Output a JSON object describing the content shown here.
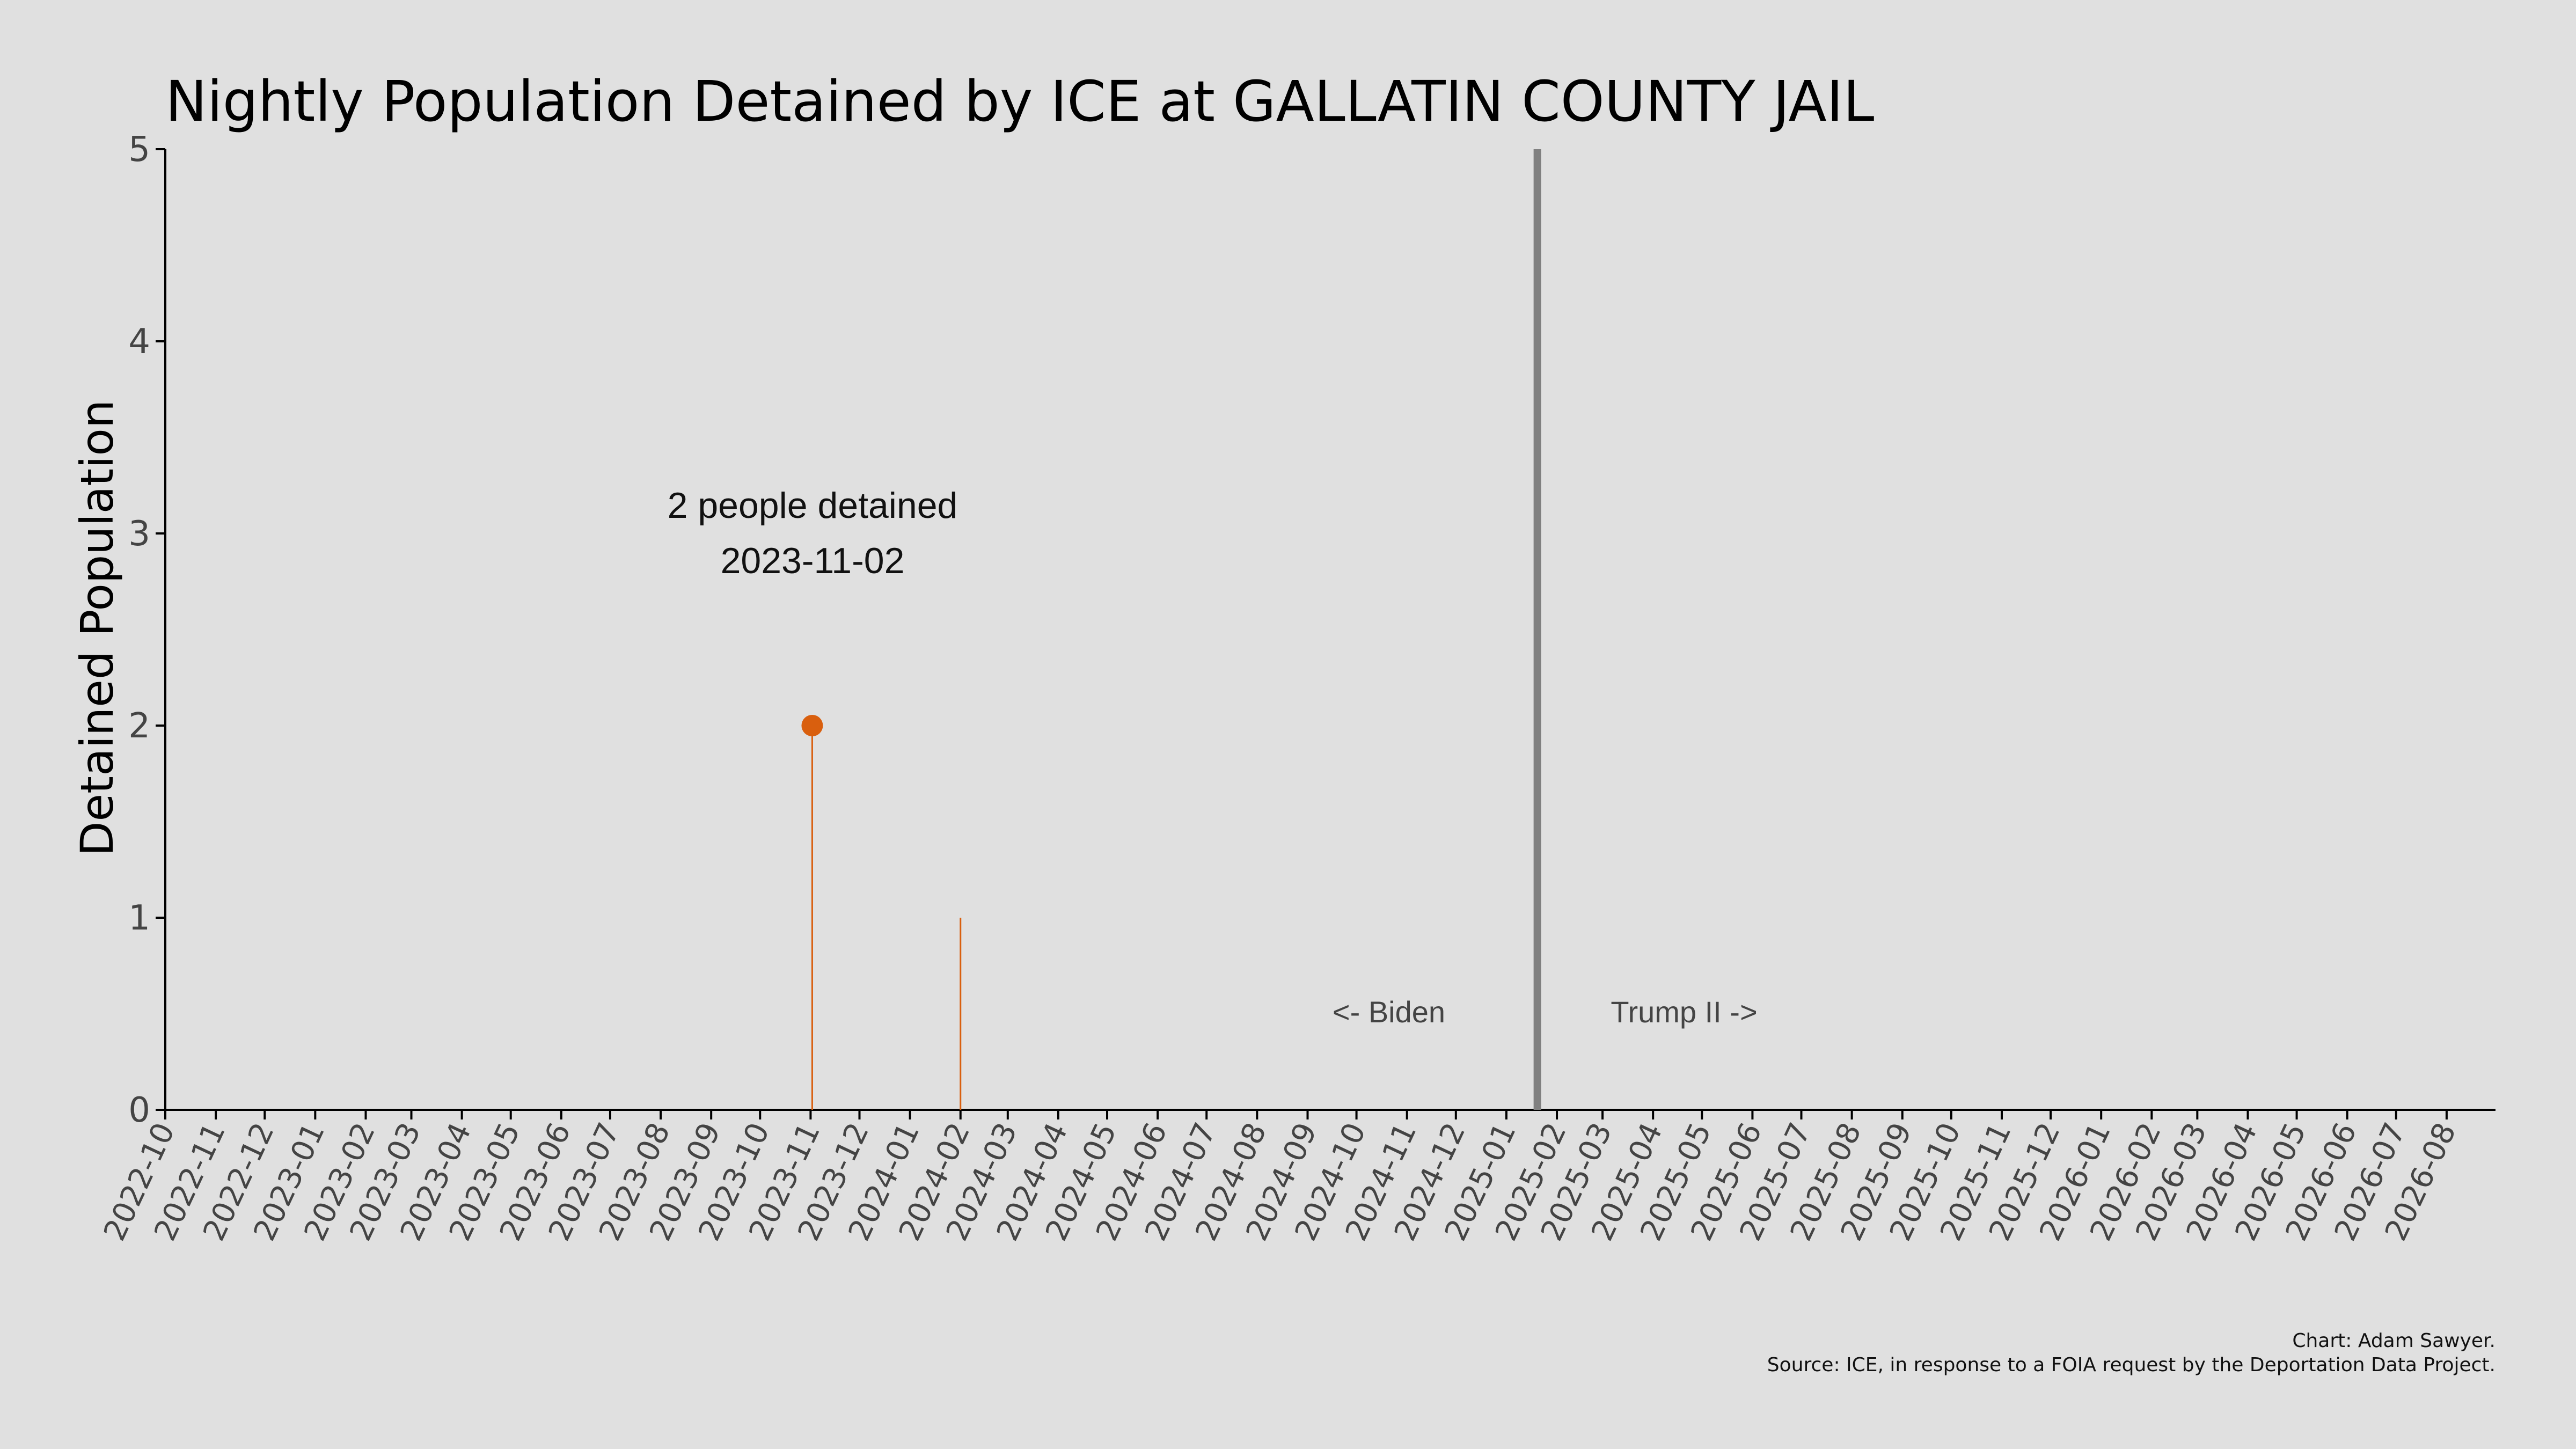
{
  "chart_data": {
    "type": "line",
    "title": "Nightly Population Detained by ICE at GALLATIN COUNTY JAIL",
    "xlabel": "",
    "ylabel": "Detained Population",
    "ylim": [
      0,
      5
    ],
    "yticks": [
      0,
      1,
      2,
      3,
      4,
      5
    ],
    "xlim": [
      "2022-10-01",
      "2026-08-31"
    ],
    "xticks": [
      "2022-10",
      "2022-11",
      "2022-12",
      "2023-01",
      "2023-02",
      "2023-03",
      "2023-04",
      "2023-05",
      "2023-06",
      "2023-07",
      "2023-08",
      "2023-09",
      "2023-10",
      "2023-11",
      "2023-12",
      "2024-01",
      "2024-02",
      "2024-03",
      "2024-04",
      "2024-05",
      "2024-06",
      "2024-07",
      "2024-08",
      "2024-09",
      "2024-10",
      "2024-11",
      "2024-12",
      "2025-01",
      "2025-02",
      "2025-03",
      "2025-04",
      "2025-05",
      "2025-06",
      "2025-07",
      "2025-08",
      "2025-09",
      "2025-10",
      "2025-11",
      "2025-12",
      "2026-01",
      "2026-02",
      "2026-03",
      "2026-04",
      "2026-05",
      "2026-06",
      "2026-07",
      "2026-08"
    ],
    "grid": false,
    "series": [
      {
        "color": "#d95f0e",
        "points": [
          {
            "date": "2023-11-02",
            "value": 2
          },
          {
            "date": "2024-02-01",
            "value": 1
          }
        ]
      }
    ],
    "highlight": {
      "date": "2023-11-02",
      "value": 2,
      "color": "#d95f0e"
    },
    "annotation": {
      "line1": "2 people detained",
      "line2": "2023-11-02"
    },
    "divider": {
      "date": "2025-01-20",
      "color": "#808080"
    },
    "era_labels": {
      "left": "<- Biden",
      "right": "Trump II ->"
    },
    "credits": {
      "line1": "Chart: Adam Sawyer.",
      "line2": "Source: ICE, in response to a FOIA request by the Deportation Data Project."
    }
  }
}
